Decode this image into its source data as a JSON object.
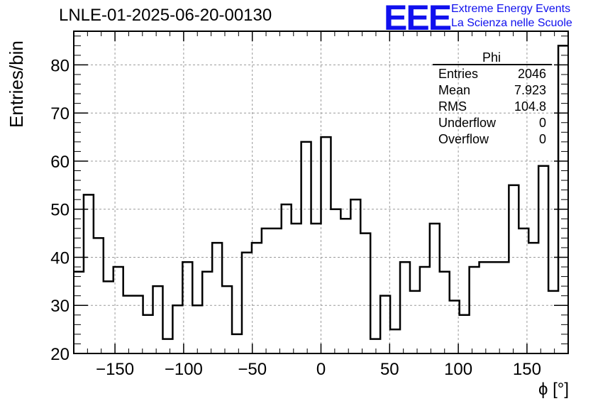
{
  "title": "LNLE-01-2025-06-20-00130",
  "logo": {
    "mark": "EEE",
    "line1": "Extreme Energy Events",
    "line2": "La Scienza nelle Scuole",
    "color": "#1010ee"
  },
  "stats": {
    "name": "Phi",
    "rows": [
      {
        "label": "Entries",
        "value": "2046"
      },
      {
        "label": "Mean",
        "value": "7.923"
      },
      {
        "label": "RMS",
        "value": "104.8"
      },
      {
        "label": "Underflow",
        "value": "0"
      },
      {
        "label": "Overflow",
        "value": "0"
      }
    ]
  },
  "chart_data": {
    "type": "histogram",
    "xlabel": "ϕ [°]",
    "ylabel": "Entries/bin",
    "xlim": [
      -180,
      180
    ],
    "ylim": [
      20,
      87
    ],
    "grid": true,
    "x_ticks": [
      -150,
      -100,
      -50,
      0,
      50,
      100,
      150
    ],
    "y_ticks": [
      20,
      30,
      40,
      50,
      60,
      70,
      80
    ],
    "bin_width": 7.2,
    "bin_start": -180,
    "values": [
      37,
      53,
      44,
      35,
      38,
      32,
      32,
      28,
      34,
      23,
      30,
      39,
      30,
      37,
      43,
      34,
      24,
      41,
      43,
      46,
      46,
      51,
      47,
      64,
      47,
      65,
      50,
      48,
      52,
      45,
      23,
      32,
      25,
      39,
      33,
      38,
      47,
      37,
      31,
      28,
      38,
      39,
      39,
      39,
      55,
      46,
      43,
      59,
      33,
      84
    ],
    "line_color": "#000000"
  }
}
